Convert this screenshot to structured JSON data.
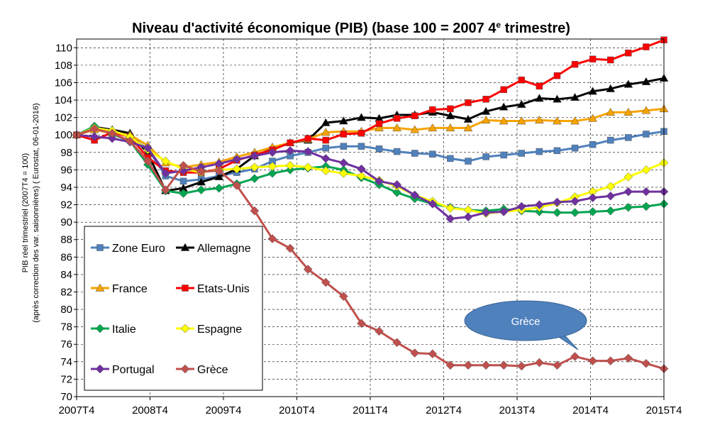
{
  "chart_data": {
    "type": "line",
    "title": "Niveau d'activité économique (PIB)  (base 100 = 2007 4",
    "title_sup": "e",
    "title_end": " trimestre)",
    "ylabel_line1": "PIB réel trimestriel (2007T4 = 100)",
    "ylabel_line2": "(après correction des var. saisonnières) ( Eurostat, 06-01-2016)",
    "ylim": [
      70,
      111
    ],
    "yticks": [
      70,
      72,
      74,
      76,
      78,
      80,
      82,
      84,
      86,
      88,
      90,
      92,
      94,
      96,
      98,
      100,
      102,
      104,
      106,
      108,
      110
    ],
    "xticks": [
      "2007T4",
      "2008T4",
      "2009T4",
      "2010T4",
      "2011T4",
      "2012T4",
      "2013T4",
      "2014T4",
      "2015T4"
    ],
    "grid": true,
    "legend_position": "inside-bottom-left",
    "annotation": {
      "text": "Grèce",
      "bubble_color": "#4f81bd"
    },
    "series": [
      {
        "name": "Zone Euro",
        "color": "#4f81bd",
        "marker": "square",
        "values": [
          100,
          100.6,
          100.3,
          99.8,
          98.4,
          95.3,
          94.7,
          94.9,
          95.3,
          95.7,
          96.1,
          97.0,
          97.6,
          98.0,
          98.5,
          98.7,
          98.7,
          98.4,
          98.1,
          97.9,
          97.8,
          97.3,
          97.0,
          97.5,
          97.7,
          97.9,
          98.1,
          98.2,
          98.5,
          98.9,
          99.4,
          99.7,
          100.1,
          100.4
        ]
      },
      {
        "name": "Allemagne",
        "color": "#000000",
        "marker": "triangle",
        "values": [
          100,
          100.9,
          100.6,
          100.2,
          97.9,
          93.6,
          93.9,
          94.6,
          95.2,
          96.1,
          97.6,
          98.4,
          99.1,
          99.4,
          101.4,
          101.6,
          102.0,
          101.9,
          102.3,
          102.3,
          102.6,
          102.2,
          101.8,
          102.7,
          103.2,
          103.5,
          104.2,
          104.1,
          104.3,
          105.0,
          105.3,
          105.8,
          106.1,
          106.5
        ]
      },
      {
        "name": "France",
        "color": "#f7a300",
        "marker": "triangle",
        "values": [
          100,
          100.6,
          100.2,
          100.0,
          98.8,
          96.8,
          96.3,
          96.6,
          96.9,
          97.5,
          98.0,
          98.6,
          99.1,
          99.5,
          100.3,
          100.4,
          100.4,
          100.8,
          100.8,
          100.6,
          100.8,
          100.8,
          100.8,
          101.7,
          101.6,
          101.6,
          101.7,
          101.6,
          101.6,
          101.9,
          102.6,
          102.6,
          102.8,
          103.0
        ]
      },
      {
        "name": "Etats-Unis",
        "color": "#ff0000",
        "marker": "square",
        "values": [
          100,
          99.4,
          100.3,
          99.8,
          97.4,
          95.9,
          95.7,
          95.7,
          96.1,
          97.1,
          97.7,
          98.3,
          99.1,
          99.6,
          99.4,
          100.1,
          100.2,
          101.3,
          101.9,
          102.2,
          102.9,
          103.0,
          103.7,
          104.1,
          105.2,
          106.3,
          105.6,
          106.8,
          108.1,
          108.7,
          108.6,
          109.4,
          110.1,
          110.9
        ]
      },
      {
        "name": "Italie",
        "color": "#00a650",
        "marker": "diamond",
        "values": [
          100,
          101.0,
          100.1,
          99.3,
          96.6,
          93.6,
          93.3,
          93.7,
          93.9,
          94.4,
          95.0,
          95.6,
          96.0,
          96.2,
          96.4,
          96.0,
          95.1,
          94.3,
          93.4,
          92.7,
          92.1,
          91.7,
          91.4,
          91.3,
          91.5,
          91.3,
          91.2,
          91.1,
          91.1,
          91.2,
          91.3,
          91.7,
          91.8,
          92.1
        ]
      },
      {
        "name": "Espagne",
        "color": "#ffff00",
        "marker": "diamond",
        "values": [
          100,
          100.8,
          100.5,
          99.8,
          98.3,
          97.0,
          96.1,
          95.7,
          96.0,
          96.1,
          96.3,
          96.4,
          96.5,
          96.3,
          95.9,
          95.6,
          95.3,
          94.8,
          94.1,
          93.1,
          92.4,
          91.6,
          91.4,
          91.0,
          91.2,
          91.4,
          91.7,
          92.2,
          92.9,
          93.5,
          94.1,
          95.2,
          96.0,
          96.8
        ]
      },
      {
        "name": "Portugal",
        "color": "#7030a0",
        "marker": "diamond",
        "values": [
          100,
          99.8,
          99.6,
          99.2,
          98.5,
          95.6,
          95.9,
          96.3,
          96.7,
          97.2,
          97.6,
          98.0,
          98.2,
          98.1,
          97.3,
          96.8,
          96.1,
          94.7,
          94.3,
          93.1,
          92.1,
          90.4,
          90.6,
          91.1,
          91.2,
          91.8,
          92.0,
          92.3,
          92.4,
          92.8,
          93.0,
          93.5,
          93.5,
          93.5
        ]
      },
      {
        "name": "Grèce",
        "color": "#c0504d",
        "marker": "diamond",
        "values": [
          100,
          100.7,
          100.2,
          99.3,
          97.0,
          93.7,
          96.5,
          95.8,
          95.9,
          94.2,
          91.3,
          88.1,
          87.0,
          84.6,
          83.1,
          81.5,
          78.4,
          77.5,
          76.2,
          75.0,
          74.9,
          73.6,
          73.6,
          73.6,
          73.6,
          73.5,
          73.9,
          73.6,
          74.6,
          74.1,
          74.1,
          74.4,
          73.8,
          73.2
        ]
      }
    ]
  }
}
